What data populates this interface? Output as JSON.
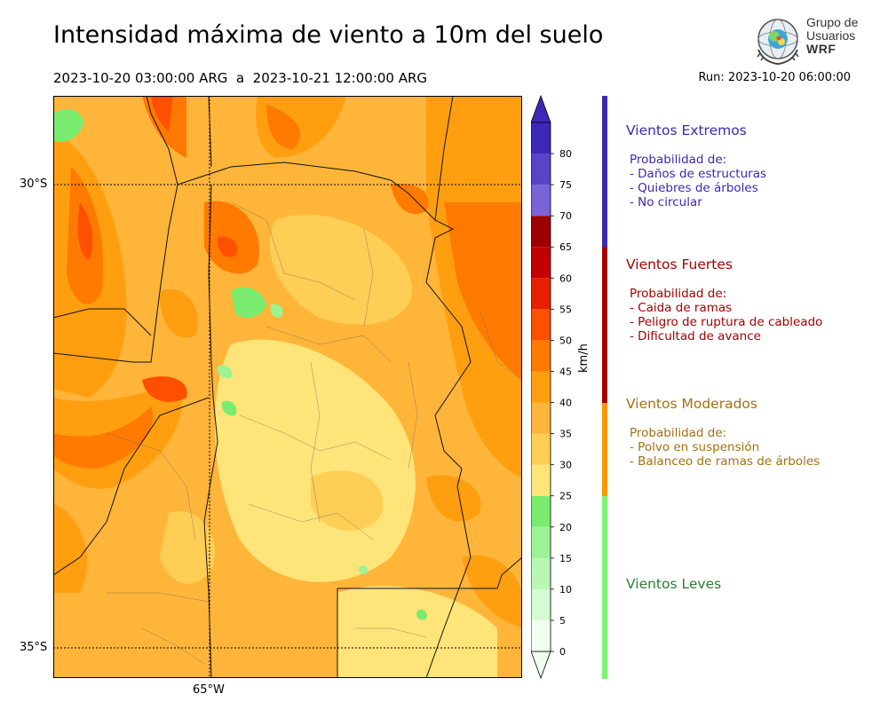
{
  "header": {
    "title": "Intensidad máxima de viento a 10m del suelo",
    "period": "2023-10-20 03:00:00 ARG  a  2023-10-21 12:00:00 ARG",
    "run": "Run: 2023-10-20 06:00:00"
  },
  "logo": {
    "line1": "Grupo de",
    "line2": "Usuarios",
    "line3": "WRF"
  },
  "axes": {
    "lat_labels": [
      "30°S",
      "35°S"
    ],
    "lon_labels": [
      "65°W"
    ]
  },
  "map_field": {
    "variable": "Intensidad máxima de viento a 10m",
    "dominant_range_kmh": [
      25,
      45
    ],
    "max_regions_kmh": [
      50,
      60
    ],
    "min_regions_kmh": [
      15,
      25
    ]
  },
  "colorbar": {
    "unit": "km/h",
    "ticks": [
      "0",
      "5",
      "10",
      "15",
      "20",
      "25",
      "30",
      "35",
      "40",
      "45",
      "50",
      "55",
      "60",
      "65",
      "70",
      "75",
      "80"
    ],
    "colors": [
      "#effff0",
      "#d4fbd2",
      "#b9f7b4",
      "#9ef296",
      "#79ec6f",
      "#ffe479",
      "#ffce55",
      "#ffb53a",
      "#ff9f10",
      "#ff7a00",
      "#ff4f00",
      "#e81e00",
      "#c30000",
      "#9c0000",
      "#7a62d7",
      "#5844c7",
      "#3b28b7"
    ]
  },
  "categories": [
    {
      "title": "Vientos Extremos",
      "color": "#3d29b0",
      "bar_color": "#3d29b0",
      "lines": [
        "Probabilidad de:",
        "- Daños de estructuras",
        "- Quiebres de árboles",
        "- No circular"
      ]
    },
    {
      "title": "Vientos Fuertes",
      "color": "#a40000",
      "bar_color": "#a40000",
      "lines": [
        "Probabilidad de:",
        "- Caida de ramas",
        "- Peligro de ruptura de cableado",
        "- Dificultad de avance"
      ]
    },
    {
      "title": "Vientos Moderados",
      "color": "#a6700f",
      "bar_color": "#ff9900",
      "lines": [
        "Probabilidad de:",
        "- Polvo en suspensión",
        "- Balanceo de ramas de árboles"
      ]
    },
    {
      "title": "Vientos Leves",
      "color": "#2e7d32",
      "bar_color": "#7bf574",
      "lines": []
    }
  ]
}
